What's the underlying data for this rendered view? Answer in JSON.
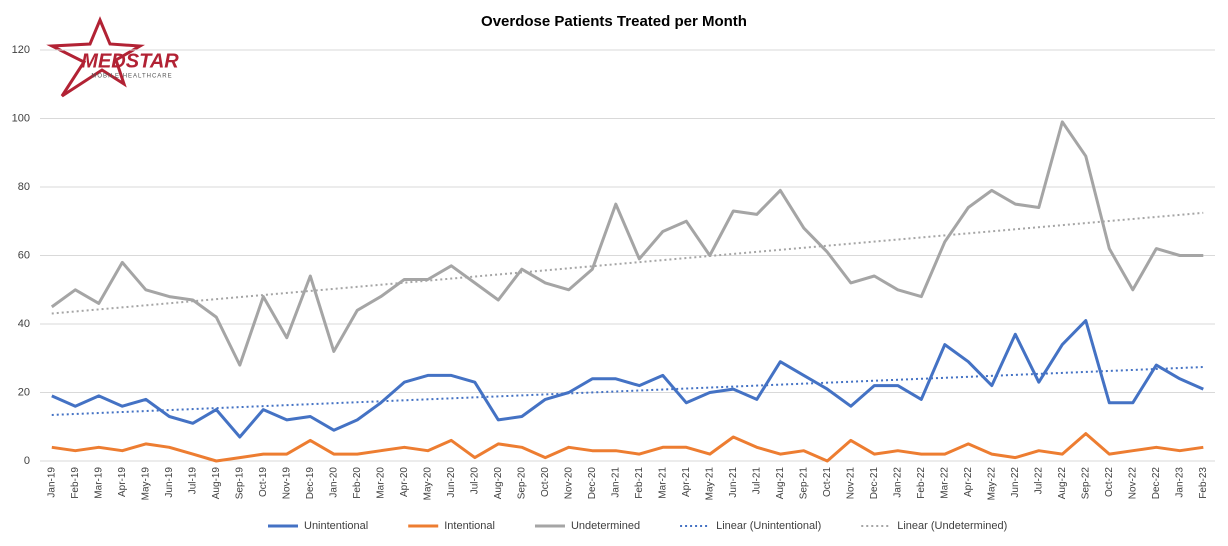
{
  "chart_data": {
    "type": "line",
    "title": "Overdose Patients Treated per Month",
    "logo": {
      "name": "MEDSTAR",
      "tagline": "MOBILE HEALTHCARE"
    },
    "categories": [
      "Jan-19",
      "Feb-19",
      "Mar-19",
      "Apr-19",
      "May-19",
      "Jun-19",
      "Jul-19",
      "Aug-19",
      "Sep-19",
      "Oct-19",
      "Nov-19",
      "Dec-19",
      "Jan-20",
      "Feb-20",
      "Mar-20",
      "Apr-20",
      "May-20",
      "Jun-20",
      "Jul-20",
      "Aug-20",
      "Sep-20",
      "Oct-20",
      "Nov-20",
      "Dec-20",
      "Jan-21",
      "Feb-21",
      "Mar-21",
      "Apr-21",
      "May-21",
      "Jun-21",
      "Jul-21",
      "Aug-21",
      "Sep-21",
      "Oct-21",
      "Nov-21",
      "Dec-21",
      "Jan-22",
      "Feb-22",
      "Mar-22",
      "Apr-22",
      "May-22",
      "Jun-22",
      "Jul-22",
      "Aug-22",
      "Sep-22",
      "Oct-22",
      "Nov-22",
      "Dec-22",
      "Jan-23",
      "Feb-23"
    ],
    "series": [
      {
        "name": "Unintentional",
        "color": "#4472c4",
        "trendline": {
          "name": "Linear (Unintentional)",
          "type": "linear"
        },
        "values": [
          19,
          16,
          19,
          16,
          18,
          13,
          11,
          15,
          7,
          15,
          12,
          13,
          9,
          12,
          17,
          23,
          25,
          25,
          23,
          12,
          13,
          18,
          20,
          24,
          24,
          22,
          25,
          17,
          20,
          21,
          18,
          29,
          25,
          21,
          16,
          22,
          22,
          18,
          34,
          29,
          22,
          37,
          23,
          34,
          41,
          17,
          17,
          28,
          24,
          21
        ]
      },
      {
        "name": "Intentional",
        "color": "#ed7d31",
        "values": [
          4,
          3,
          4,
          3,
          5,
          4,
          2,
          0,
          1,
          2,
          2,
          6,
          2,
          2,
          3,
          4,
          3,
          6,
          1,
          5,
          4,
          1,
          4,
          3,
          3,
          2,
          4,
          4,
          2,
          7,
          4,
          2,
          3,
          0,
          6,
          2,
          3,
          2,
          2,
          5,
          2,
          1,
          3,
          2,
          8,
          2,
          3,
          4,
          3,
          4
        ]
      },
      {
        "name": "Undetermined",
        "color": "#a5a5a5",
        "trendline": {
          "name": "Linear (Undetermined)",
          "type": "linear"
        },
        "values": [
          45,
          50,
          46,
          58,
          50,
          48,
          47,
          42,
          28,
          48,
          36,
          54,
          32,
          44,
          48,
          53,
          53,
          57,
          52,
          47,
          56,
          52,
          50,
          56,
          75,
          59,
          67,
          70,
          60,
          73,
          72,
          79,
          68,
          61,
          52,
          54,
          50,
          48,
          64,
          74,
          79,
          75,
          74,
          99,
          89,
          62,
          50,
          62,
          60,
          60
        ]
      }
    ],
    "ylim": [
      0,
      120
    ],
    "yticks": [
      0,
      20,
      40,
      60,
      80,
      100,
      120
    ],
    "grid": true,
    "legend": "bottom"
  }
}
